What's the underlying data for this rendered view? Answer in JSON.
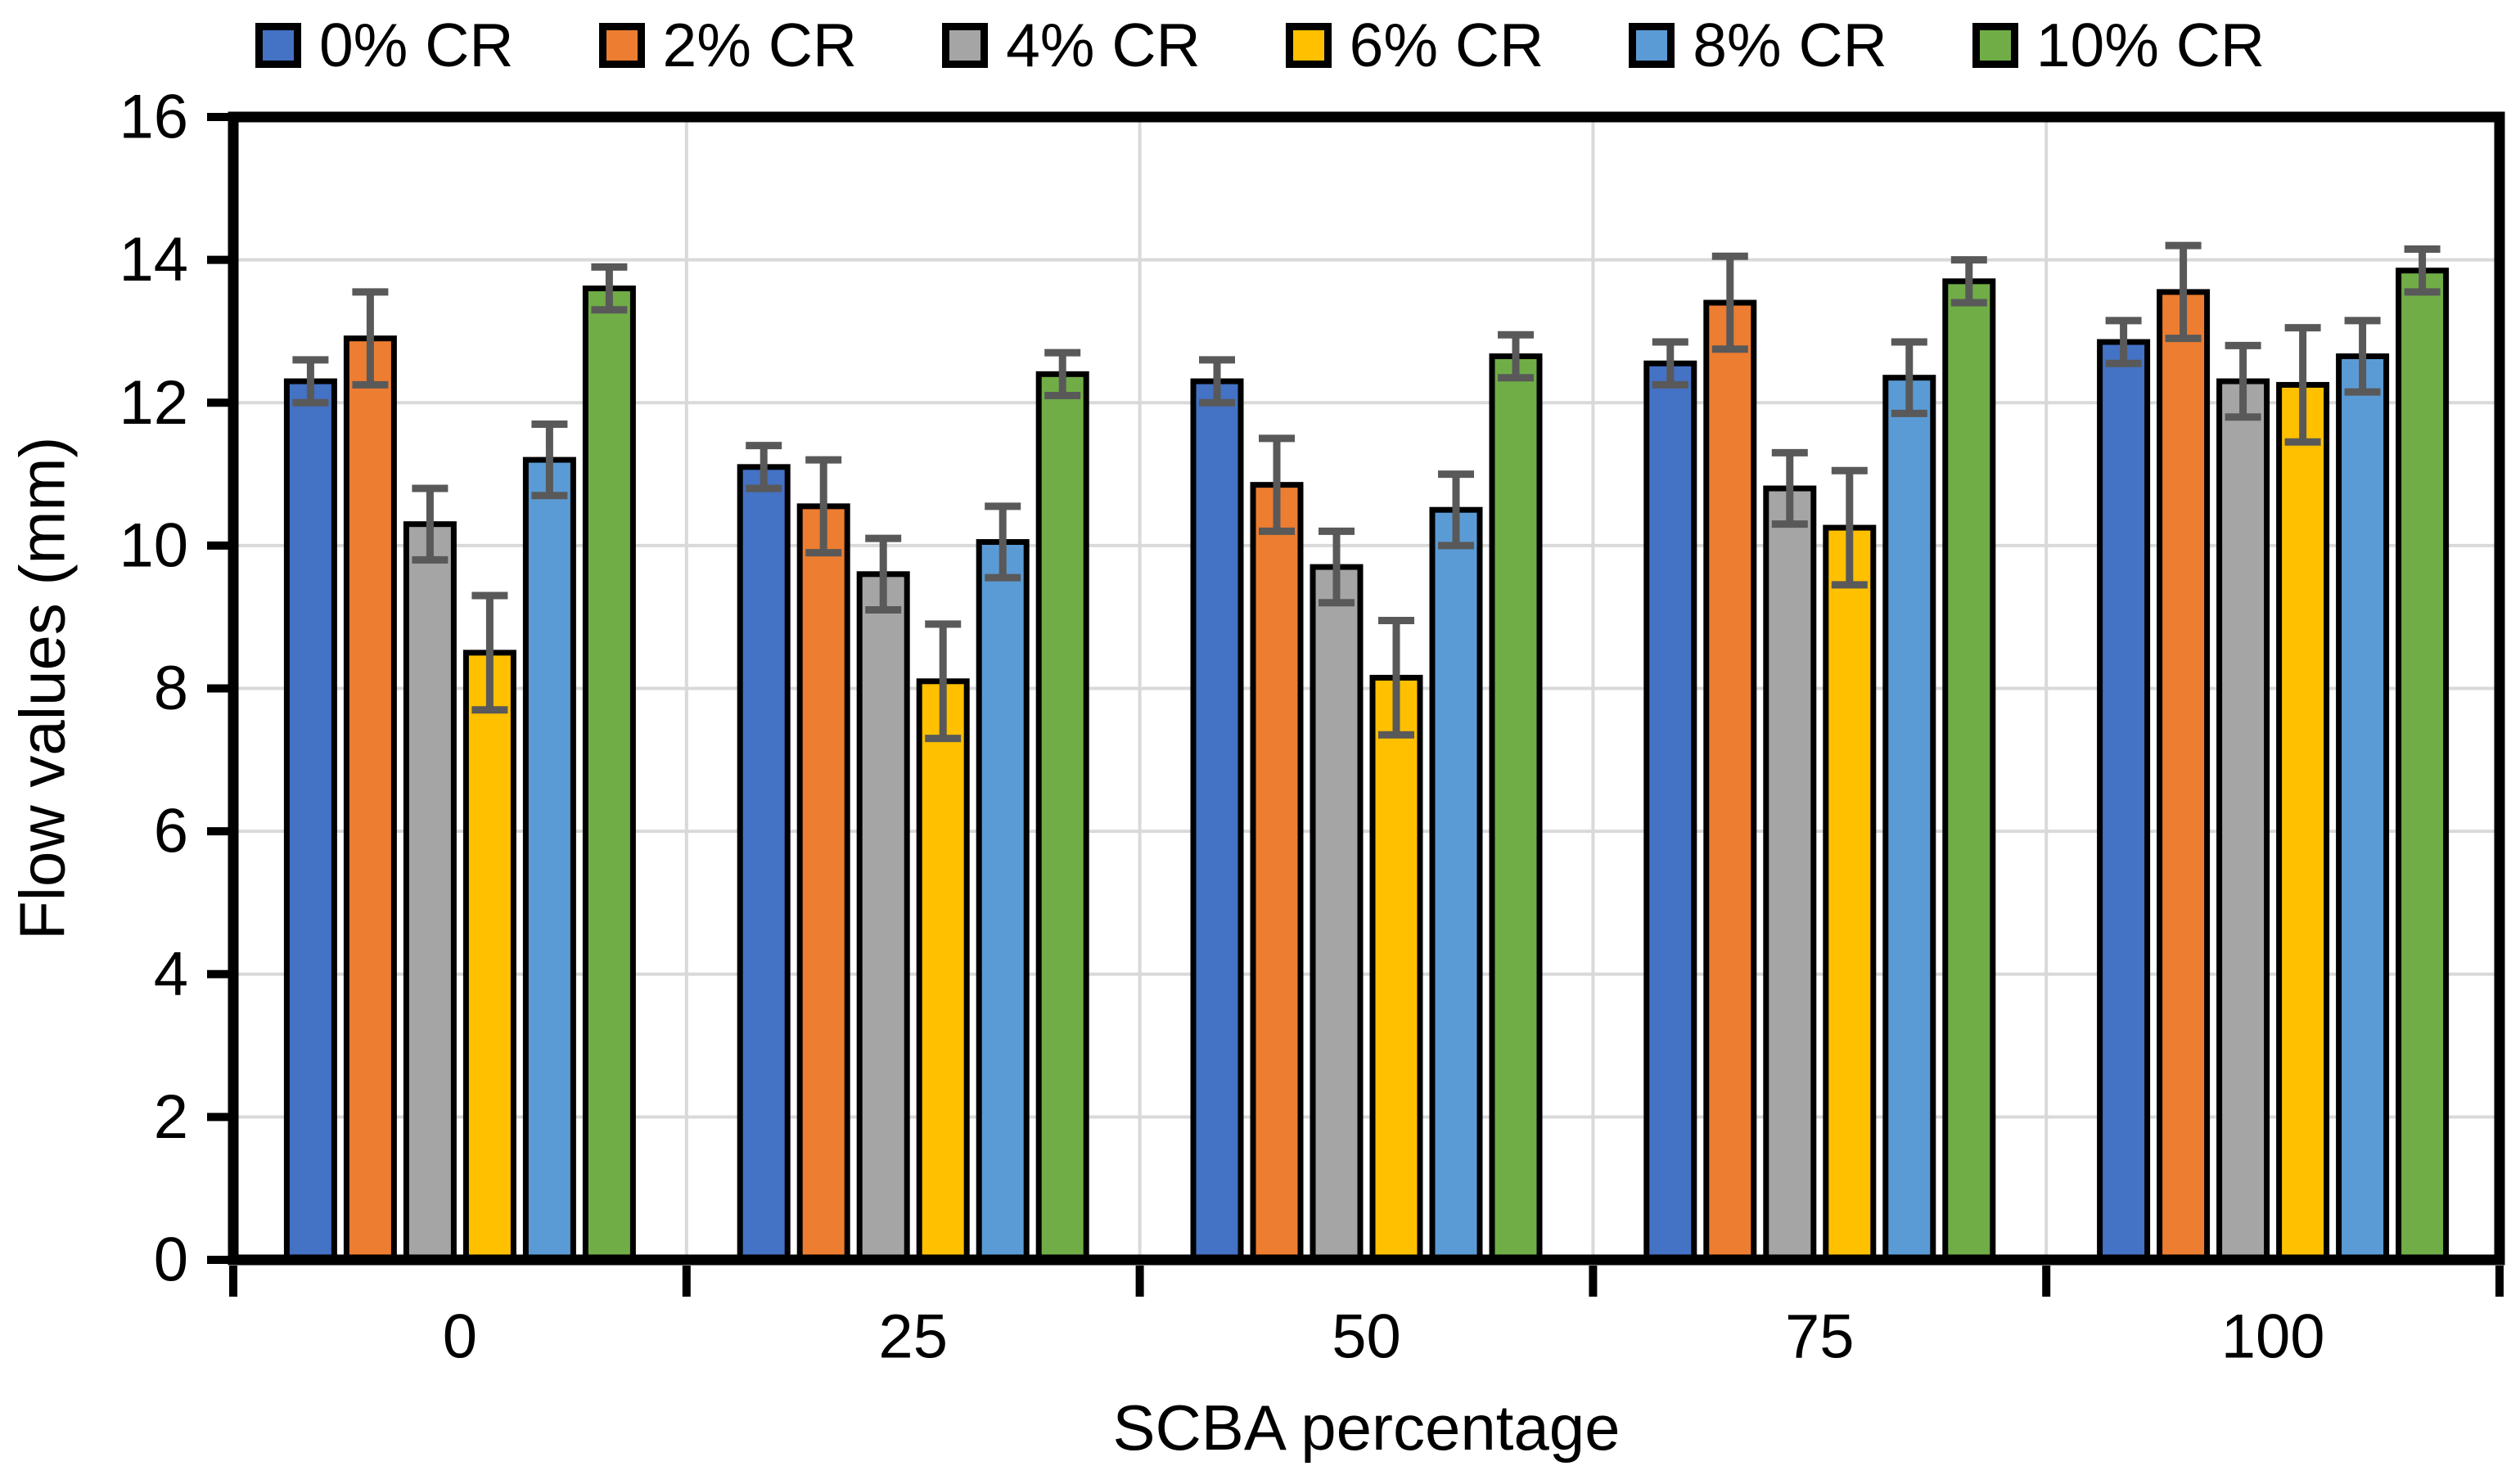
{
  "figure": {
    "background": "#FFFFFF"
  },
  "chart_data": {
    "type": "bar",
    "title": "",
    "xlabel": "SCBA percentage",
    "ylabel": "Flow values (mm)",
    "categories": [
      "0",
      "25",
      "50",
      "75",
      "100"
    ],
    "ylim": [
      0,
      16
    ],
    "yticks": [
      0,
      2,
      4,
      6,
      8,
      10,
      12,
      14,
      16
    ],
    "grid": {
      "horizontal": true,
      "vertical_category_separators": true
    },
    "legend_position": "top",
    "series": [
      {
        "name": "0% CR",
        "color": "#4472C4",
        "values": [
          12.3,
          11.1,
          12.3,
          12.55,
          12.85
        ],
        "error": [
          0.3,
          0.3,
          0.3,
          0.3,
          0.3
        ]
      },
      {
        "name": "2% CR",
        "color": "#ED7D31",
        "values": [
          12.9,
          10.55,
          10.85,
          13.4,
          13.55
        ],
        "error": [
          0.65,
          0.65,
          0.65,
          0.65,
          0.65
        ]
      },
      {
        "name": "4% CR",
        "color": "#A5A5A5",
        "values": [
          10.3,
          9.6,
          9.7,
          10.8,
          12.3
        ],
        "error": [
          0.5,
          0.5,
          0.5,
          0.5,
          0.5
        ]
      },
      {
        "name": "6% CR",
        "color": "#FFC000",
        "values": [
          8.5,
          8.1,
          8.15,
          10.25,
          12.25
        ],
        "error": [
          0.8,
          0.8,
          0.8,
          0.8,
          0.8
        ]
      },
      {
        "name": "8% CR",
        "color": "#5B9BD5",
        "values": [
          11.2,
          10.05,
          10.5,
          12.35,
          12.65
        ],
        "error": [
          0.5,
          0.5,
          0.5,
          0.5,
          0.5
        ]
      },
      {
        "name": "10% CR",
        "color": "#70AD47",
        "values": [
          13.6,
          12.4,
          12.65,
          13.7,
          13.85
        ],
        "error": [
          0.3,
          0.3,
          0.3,
          0.3,
          0.3
        ]
      }
    ],
    "colors": {
      "axis": "#000000",
      "bar_outline": "#000000",
      "error_bar": "#595959",
      "gridline": "#D9D9D9",
      "text": "#000000"
    }
  }
}
